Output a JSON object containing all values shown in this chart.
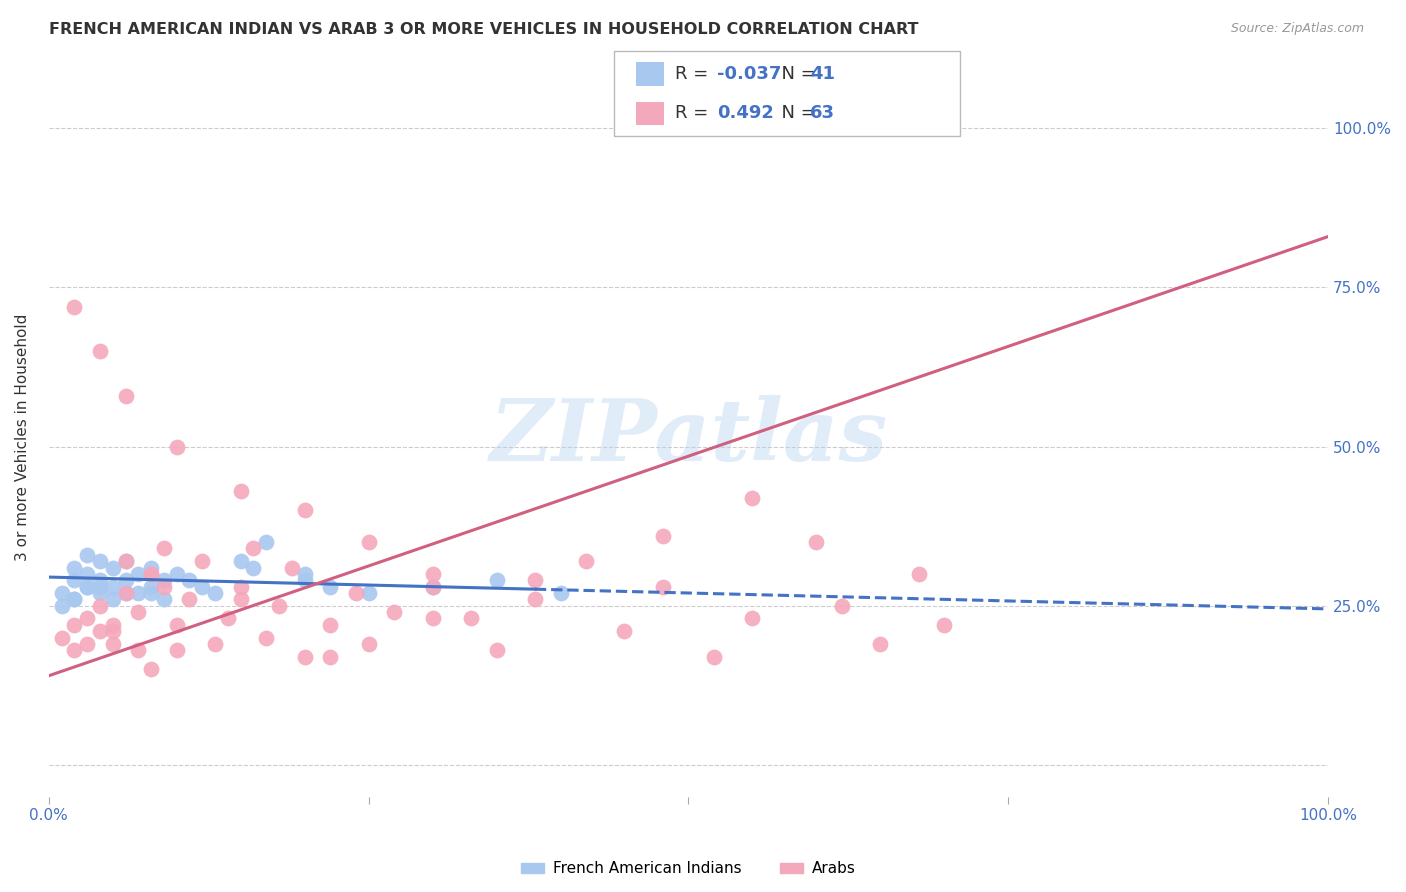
{
  "title": "FRENCH AMERICAN INDIAN VS ARAB 3 OR MORE VEHICLES IN HOUSEHOLD CORRELATION CHART",
  "source": "Source: ZipAtlas.com",
  "ylabel": "3 or more Vehicles in Household",
  "xlim": [
    0,
    100
  ],
  "ylim": [
    -5,
    108
  ],
  "blue_label": "French American Indians",
  "pink_label": "Arabs",
  "blue_R": "-0.037",
  "blue_N": "41",
  "pink_R": "0.492",
  "pink_N": "63",
  "blue_color": "#A8C8F0",
  "pink_color": "#F4A8BC",
  "blue_line_color": "#4472C4",
  "pink_line_color": "#D06080",
  "watermark": "ZIPatlas",
  "grid_y": [
    0,
    25,
    50,
    75,
    100
  ],
  "blue_scatter_x": [
    1,
    1,
    2,
    2,
    2,
    3,
    3,
    3,
    4,
    4,
    4,
    5,
    5,
    5,
    6,
    6,
    7,
    7,
    8,
    8,
    9,
    9,
    10,
    11,
    12,
    13,
    15,
    16,
    17,
    20,
    22,
    25,
    30,
    35,
    40,
    20,
    8,
    6,
    4,
    3,
    2
  ],
  "blue_scatter_y": [
    27,
    25,
    29,
    26,
    31,
    28,
    33,
    30,
    27,
    32,
    29,
    26,
    31,
    28,
    29,
    32,
    30,
    27,
    28,
    31,
    29,
    26,
    30,
    29,
    28,
    27,
    32,
    31,
    35,
    29,
    28,
    27,
    28,
    29,
    27,
    30,
    27,
    27,
    28,
    28,
    26
  ],
  "pink_scatter_x": [
    1,
    2,
    2,
    3,
    3,
    4,
    4,
    5,
    5,
    6,
    6,
    7,
    7,
    8,
    8,
    9,
    9,
    10,
    10,
    11,
    12,
    13,
    14,
    15,
    16,
    17,
    18,
    19,
    20,
    22,
    24,
    25,
    27,
    30,
    33,
    35,
    38,
    42,
    45,
    48,
    52,
    55,
    60,
    62,
    65,
    68,
    70,
    55,
    48,
    38,
    30,
    22,
    15,
    8,
    5,
    30,
    25,
    20,
    15,
    10,
    6,
    4,
    2
  ],
  "pink_scatter_y": [
    20,
    18,
    22,
    19,
    23,
    21,
    25,
    19,
    22,
    27,
    32,
    18,
    24,
    30,
    15,
    28,
    34,
    22,
    18,
    26,
    32,
    19,
    23,
    28,
    34,
    20,
    25,
    31,
    17,
    22,
    27,
    19,
    24,
    30,
    23,
    18,
    26,
    32,
    21,
    28,
    17,
    23,
    35,
    25,
    19,
    30,
    22,
    42,
    36,
    29,
    23,
    17,
    26,
    30,
    21,
    28,
    35,
    40,
    43,
    50,
    58,
    65,
    72
  ],
  "blue_trend_x": [
    0,
    100
  ],
  "blue_trend_y": [
    29.5,
    24.5
  ],
  "blue_solid_end": 38,
  "pink_trend_x": [
    0,
    100
  ],
  "pink_trend_y": [
    14,
    83
  ]
}
